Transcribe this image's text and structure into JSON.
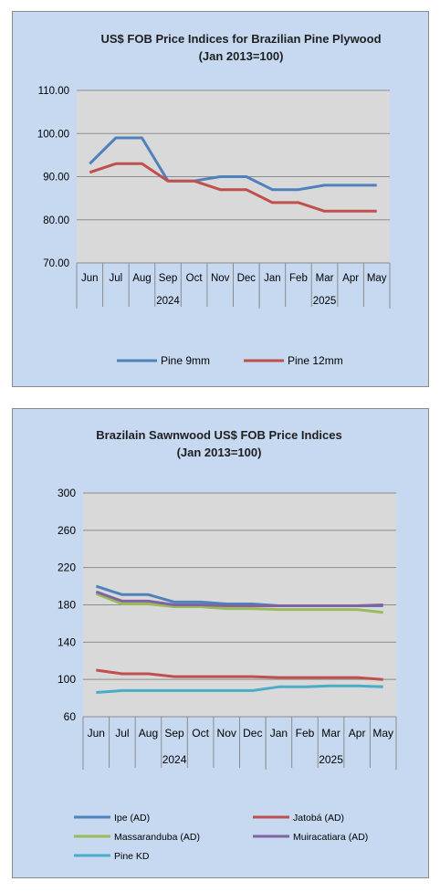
{
  "chart_data": [
    {
      "type": "line",
      "title_lines": [
        "US$ FOB Price Indices for Brazilian  Pine Plywood",
        "(Jan 2013=100)"
      ],
      "categories": [
        "Jun",
        "Jul",
        "Aug",
        "Sep",
        "Oct",
        "Nov",
        "Dec",
        "Jan",
        "Feb",
        "Mar",
        "Apr",
        "May"
      ],
      "groups": [
        {
          "label": "2024",
          "start": 0,
          "count": 7
        },
        {
          "label": "2025",
          "start": 7,
          "count": 5
        }
      ],
      "y_ticks": [
        "110.00",
        "100.00",
        "90.00",
        "80.00",
        "70.00"
      ],
      "ylim": [
        70,
        110
      ],
      "grid": true,
      "legend_position": "bottom",
      "series": [
        {
          "name": "Pine 9mm",
          "color": "#4f81bd",
          "values": [
            93,
            99,
            99,
            89,
            89,
            90,
            90,
            87,
            87,
            88,
            88,
            88
          ]
        },
        {
          "name": "Pine 12mm",
          "color": "#c0504d",
          "values": [
            91,
            93,
            93,
            89,
            89,
            87,
            87,
            84,
            84,
            82,
            82,
            82
          ]
        }
      ]
    },
    {
      "type": "line",
      "title_lines": [
        "Brazilain Sawnwood US$ FOB Price Indices",
        "(Jan 2013=100)"
      ],
      "categories": [
        "Jun",
        "Jul",
        "Aug",
        "Sep",
        "Oct",
        "Nov",
        "Dec",
        "Jan",
        "Feb",
        "Mar",
        "Apr",
        "May"
      ],
      "groups": [
        {
          "label": "2024",
          "start": 0,
          "count": 7
        },
        {
          "label": "2025",
          "start": 7,
          "count": 5
        }
      ],
      "y_ticks": [
        "300",
        "260",
        "220",
        "180",
        "140",
        "100",
        "60"
      ],
      "ylim": [
        60,
        300
      ],
      "grid": true,
      "legend_position": "bottom",
      "series": [
        {
          "name": "Ipe (AD)",
          "color": "#4f81bd",
          "values": [
            200,
            191,
            191,
            183,
            183,
            181,
            181,
            179,
            179,
            179,
            179,
            179
          ]
        },
        {
          "name": "Jatobá (AD)",
          "color": "#c0504d",
          "values": [
            110,
            106,
            106,
            103,
            103,
            103,
            103,
            102,
            102,
            102,
            102,
            100
          ]
        },
        {
          "name": "Massaranduba (AD)",
          "color": "#9bbb59",
          "values": [
            192,
            181,
            181,
            178,
            178,
            176,
            176,
            175,
            175,
            175,
            175,
            172
          ]
        },
        {
          "name": "Muiracatiara (AD)",
          "color": "#8064a2",
          "values": [
            194,
            184,
            184,
            180,
            180,
            179,
            179,
            179,
            179,
            179,
            179,
            180
          ]
        },
        {
          "name": "Pine KD",
          "color": "#4bacc6",
          "values": [
            86,
            88,
            88,
            88,
            88,
            88,
            88,
            92,
            92,
            93,
            93,
            92
          ]
        }
      ]
    }
  ]
}
